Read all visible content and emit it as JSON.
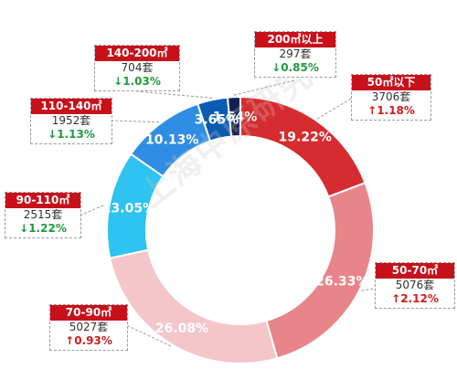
{
  "chart_data": {
    "type": "pie",
    "donut": true,
    "slices": [
      {
        "label": "200㎡以上",
        "percent_label": "1.54%",
        "value": 1.54,
        "count": "297套",
        "change": "↓0.85%",
        "direction": "down",
        "color": "#14204f"
      },
      {
        "label": "50㎡以下",
        "percent_label": "19.22%",
        "value": 19.22,
        "count": "3706套",
        "change": "↑1.18%",
        "direction": "up",
        "color": "#d62c2f"
      },
      {
        "label": "50-70㎡",
        "percent_label": "26.33%",
        "value": 26.33,
        "count": "5076套",
        "change": "↑2.12%",
        "direction": "up",
        "color": "#e8858a"
      },
      {
        "label": "70-90㎡",
        "percent_label": "26.08%",
        "value": 26.08,
        "count": "5027套",
        "change": "↑0.93%",
        "direction": "up",
        "color": "#f4c6c9"
      },
      {
        "label": "90-110㎡",
        "percent_label": "13.05%",
        "value": 13.05,
        "count": "2515套",
        "change": "↓1.22%",
        "direction": "down",
        "color": "#2ec3f0"
      },
      {
        "label": "110-140㎡",
        "percent_label": "10.13%",
        "value": 10.13,
        "count": "1952套",
        "change": "↓1.13%",
        "direction": "down",
        "color": "#2f8ee3"
      },
      {
        "label": "140-200㎡",
        "percent_label": "3.65%",
        "value": 3.65,
        "count": "704套",
        "change": "↓1.03%",
        "direction": "down",
        "color": "#0a5cb2"
      }
    ]
  },
  "watermark": "上海中原研究"
}
